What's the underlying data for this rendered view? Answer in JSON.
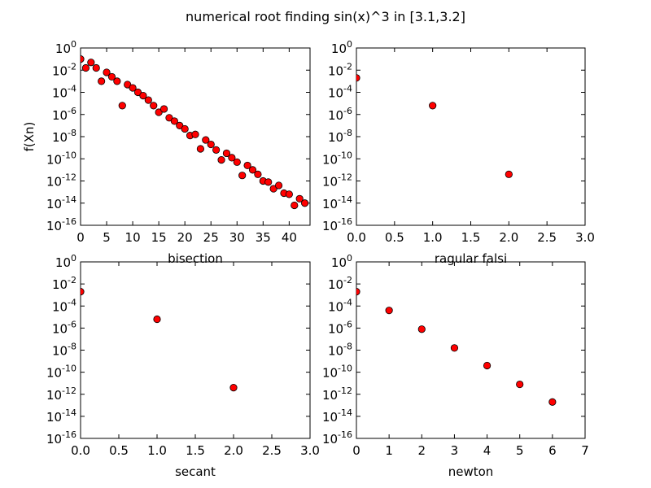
{
  "figure": {
    "title": "numerical root finding sin(x)^3 in [3.1,3.2]"
  },
  "chart_data": [
    {
      "type": "scatter",
      "name": "bisection",
      "xlabel": "bisection",
      "ylabel": "f(Xn)",
      "xlim": [
        0,
        44
      ],
      "ylim_exp": [
        -16,
        0
      ],
      "yscale": "log",
      "xticks": [
        "0",
        "5",
        "10",
        "15",
        "20",
        "25",
        "30",
        "35",
        "40"
      ],
      "yticks_exp": [
        "0",
        "-2",
        "-4",
        "-6",
        "-8",
        "-10",
        "-12",
        "-14",
        "-16"
      ],
      "ytick_base": "10",
      "grid": false,
      "marker_color": "#ff0000",
      "x": [
        0,
        1,
        2,
        3,
        4,
        5,
        6,
        7,
        8,
        9,
        10,
        11,
        12,
        13,
        14,
        15,
        16,
        17,
        18,
        19,
        20,
        21,
        22,
        23,
        24,
        25,
        26,
        27,
        28,
        29,
        30,
        31,
        32,
        33,
        34,
        35,
        36,
        37,
        38,
        39,
        40,
        41,
        42,
        43
      ],
      "log10_y": [
        -1.0,
        -1.8,
        -1.3,
        -1.8,
        -3.0,
        -2.2,
        -2.6,
        -3.0,
        -5.2,
        -3.3,
        -3.6,
        -4.0,
        -4.3,
        -4.7,
        -5.2,
        -5.8,
        -5.5,
        -6.3,
        -6.6,
        -7.0,
        -7.3,
        -7.9,
        -7.8,
        -9.1,
        -8.3,
        -8.7,
        -9.2,
        -10.1,
        -9.5,
        -9.9,
        -10.3,
        -11.5,
        -10.6,
        -11.0,
        -11.4,
        -12.0,
        -12.1,
        -12.7,
        -12.4,
        -13.1,
        -13.2,
        -14.2,
        -13.6,
        -14.0
      ]
    },
    {
      "type": "scatter",
      "name": "ragular falsi",
      "xlabel": "ragular falsi",
      "ylabel": "",
      "xlim": [
        0,
        3
      ],
      "ylim_exp": [
        -16,
        0
      ],
      "yscale": "log",
      "xticks": [
        "0.0",
        "0.5",
        "1.0",
        "1.5",
        "2.0",
        "2.5",
        "3.0"
      ],
      "yticks_exp": [
        "0",
        "-2",
        "-4",
        "-6",
        "-8",
        "-10",
        "-12",
        "-14",
        "-16"
      ],
      "ytick_base": "10",
      "grid": false,
      "marker_color": "#ff0000",
      "x": [
        0,
        1,
        2
      ],
      "log10_y": [
        -2.7,
        -5.2,
        -11.4
      ]
    },
    {
      "type": "scatter",
      "name": "secant",
      "xlabel": "secant",
      "ylabel": "",
      "xlim": [
        0,
        3
      ],
      "ylim_exp": [
        -16,
        0
      ],
      "yscale": "log",
      "xticks": [
        "0.0",
        "0.5",
        "1.0",
        "1.5",
        "2.0",
        "2.5",
        "3.0"
      ],
      "yticks_exp": [
        "0",
        "-2",
        "-4",
        "-6",
        "-8",
        "-10",
        "-12",
        "-14",
        "-16"
      ],
      "ytick_base": "10",
      "grid": false,
      "marker_color": "#ff0000",
      "x": [
        0,
        1,
        2
      ],
      "log10_y": [
        -2.7,
        -5.2,
        -11.4
      ]
    },
    {
      "type": "scatter",
      "name": "newton",
      "xlabel": "newton",
      "ylabel": "",
      "xlim": [
        0,
        7
      ],
      "ylim_exp": [
        -16,
        0
      ],
      "yscale": "log",
      "xticks": [
        "0",
        "1",
        "2",
        "3",
        "4",
        "5",
        "6",
        "7"
      ],
      "yticks_exp": [
        "0",
        "-2",
        "-4",
        "-6",
        "-8",
        "-10",
        "-12",
        "-14",
        "-16"
      ],
      "ytick_base": "10",
      "grid": false,
      "marker_color": "#ff0000",
      "x": [
        0,
        1,
        2,
        3,
        4,
        5,
        6
      ],
      "log10_y": [
        -2.7,
        -4.4,
        -6.1,
        -7.8,
        -9.4,
        -11.1,
        -12.7
      ]
    }
  ]
}
